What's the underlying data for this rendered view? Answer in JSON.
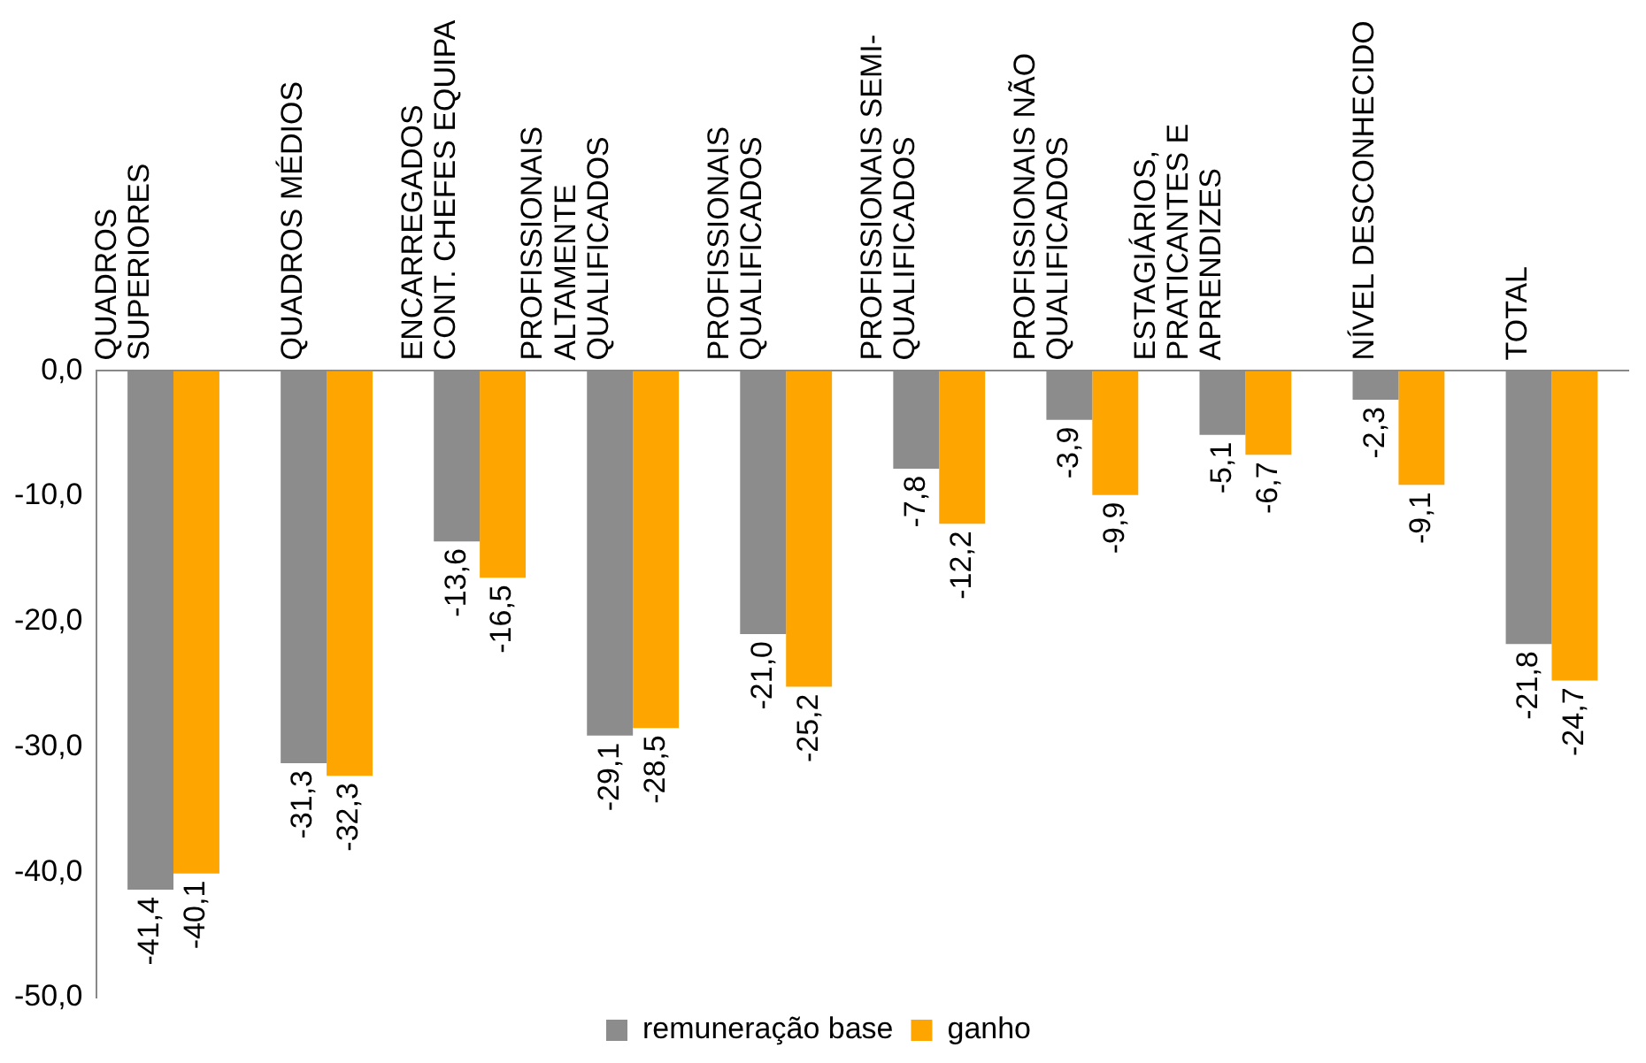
{
  "chart_data": {
    "type": "bar",
    "categories": [
      "QUADROS\nSUPERIORES",
      "QUADROS MÉDIOS",
      "ENCARREGADOS\nCONT. CHEFES EQUIPA",
      "PROFISSIONAIS\nALTAMENTE\nQUALIFICADOS",
      "PROFISSIONAIS\nQUALIFICADOS",
      "PROFISSIONAIS SEMI-\nQUALIFICADOS",
      "PROFISSIONAIS NÃO\nQUALIFICADOS",
      "ESTAGIÁRIOS,\nPRATICANTES E\nAPRENDIZES",
      "NÍVEL DESCONHECIDO",
      "TOTAL"
    ],
    "series": [
      {
        "name": "remuneração base",
        "color": "#8c8c8c",
        "values": [
          -41.4,
          -31.3,
          -13.6,
          -29.1,
          -21.0,
          -7.8,
          -3.9,
          -5.1,
          -2.3,
          -21.8
        ],
        "value_labels": [
          "-41,4",
          "-31,3",
          "-13,6",
          "-29,1",
          "-21,0",
          "-7,8",
          "-3,9",
          "-5,1",
          "-2,3",
          "-21,8"
        ]
      },
      {
        "name": "ganho",
        "color": "#ffa500",
        "values": [
          -40.1,
          -32.3,
          -16.5,
          -28.5,
          -25.2,
          -12.2,
          -9.9,
          -6.7,
          -9.1,
          -24.7
        ],
        "value_labels": [
          "-40,1",
          "-32,3",
          "-16,5",
          "-28,5",
          "-25,2",
          "-12,2",
          "-9,9",
          "-6,7",
          "-9,1",
          "-24,7"
        ]
      }
    ],
    "ylim": [
      -50,
      0
    ],
    "yticks": [
      {
        "value": 0,
        "label": "0,0"
      },
      {
        "value": -10,
        "label": "-10,0"
      },
      {
        "value": -20,
        "label": "-20,0"
      },
      {
        "value": -30,
        "label": "-30,0"
      },
      {
        "value": -40,
        "label": "-40,0"
      },
      {
        "value": -50,
        "label": "-50,0"
      }
    ],
    "grid": false,
    "legend": "bottom"
  }
}
